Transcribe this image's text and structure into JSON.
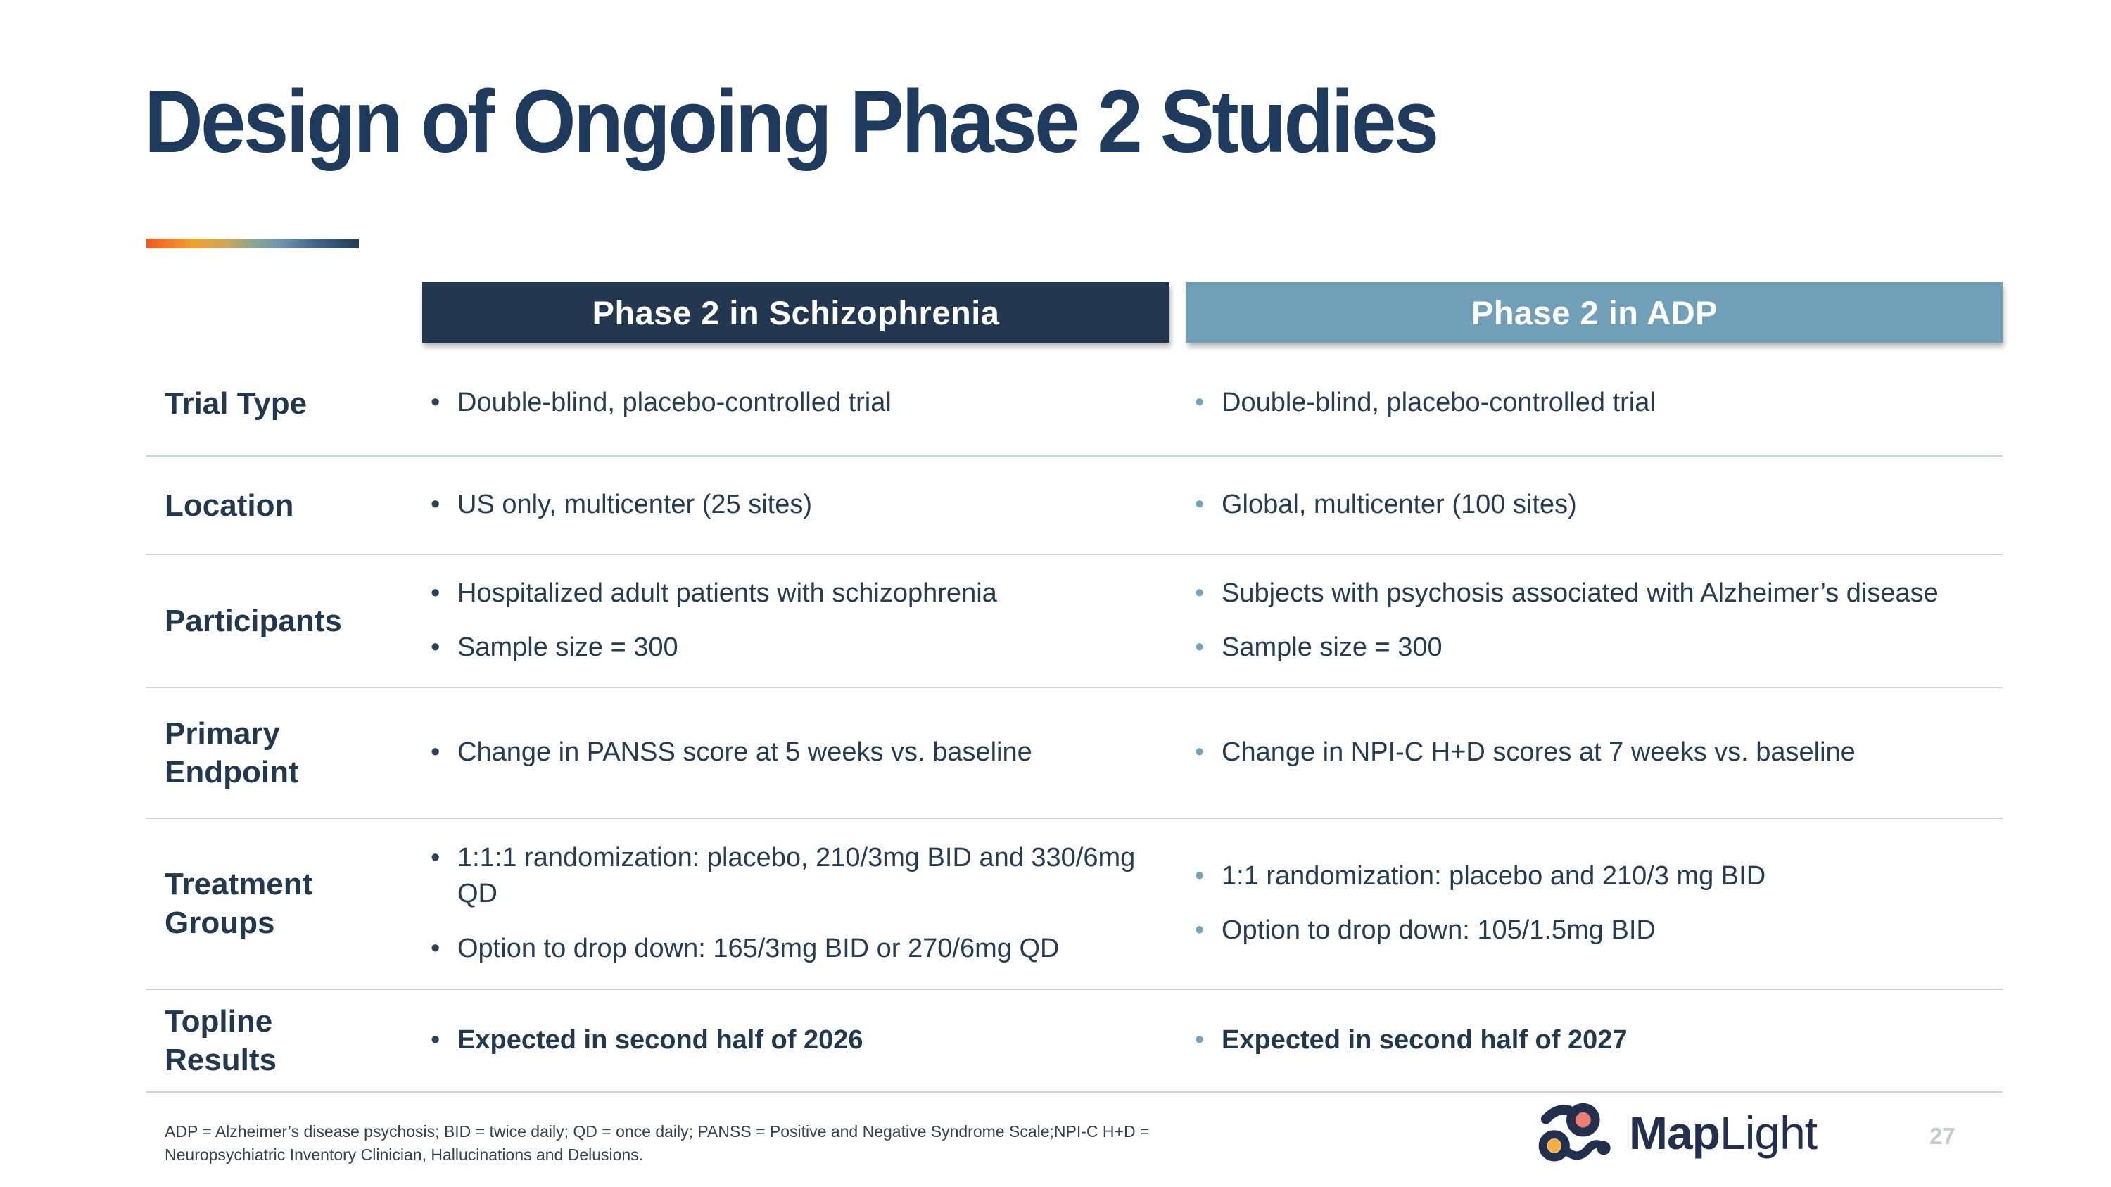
{
  "slide": {
    "title": "Design of Ongoing Phase 2 Studies",
    "page_number": "27",
    "footnote_line1": "ADP = Alzheimer’s disease psychosis; BID = twice daily; QD = once daily; PANSS = Positive and Negative Syndrome Scale;NPI-C H+D =",
    "footnote_line2": "Neuropsychiatric Inventory Clinician, Hallucinations and Delusions."
  },
  "logo": {
    "word_bold": "Map",
    "word_light": "Light"
  },
  "colors": {
    "title_navy": "#1E3A5C",
    "header_dark": "#233750",
    "header_steel": "#6FA0B7",
    "bullet_dark": "#2A4258",
    "bullet_light": "#76A5BA",
    "accent_gradient_start": "#F4561D",
    "accent_gradient_mid": "#F0A231",
    "accent_gradient_end": "#223C57",
    "logo_coral": "#EE7E72",
    "logo_yellow": "#F2B13D",
    "logo_navy": "#22304E"
  },
  "table": {
    "columns": [
      {
        "header": "Phase 2 in Schizophrenia"
      },
      {
        "header": "Phase 2 in ADP"
      }
    ],
    "rows": [
      {
        "label": "Trial Type",
        "col1": [
          "Double-blind, placebo-controlled trial"
        ],
        "col2": [
          "Double-blind, placebo-controlled trial"
        ],
        "bold": false
      },
      {
        "label": "Location",
        "col1": [
          "US only, multicenter (25 sites)"
        ],
        "col2": [
          "Global, multicenter (100 sites)"
        ],
        "bold": false
      },
      {
        "label": "Participants",
        "col1": [
          "Hospitalized adult patients with schizophrenia",
          "Sample size = 300"
        ],
        "col2": [
          "Subjects with psychosis associated with Alzheimer’s disease",
          "Sample size = 300"
        ],
        "bold": false
      },
      {
        "label": "Primary Endpoint",
        "col1": [
          "Change in PANSS score at 5 weeks vs. baseline"
        ],
        "col2": [
          "Change in NPI-C H+D scores at 7 weeks vs. baseline"
        ],
        "bold": false
      },
      {
        "label": "Treatment Groups",
        "col1": [
          "1:1:1 randomization: placebo, 210/3mg BID and 330/6mg QD",
          "Option to drop down: 165/3mg BID or 270/6mg QD"
        ],
        "col2": [
          "1:1 randomization: placebo and 210/3 mg BID",
          "Option to drop down: 105/1.5mg BID"
        ],
        "bold": false
      },
      {
        "label": "Topline Results",
        "col1": [
          "Expected in second half of 2026"
        ],
        "col2": [
          "Expected in second half of 2027"
        ],
        "bold": true
      }
    ]
  }
}
